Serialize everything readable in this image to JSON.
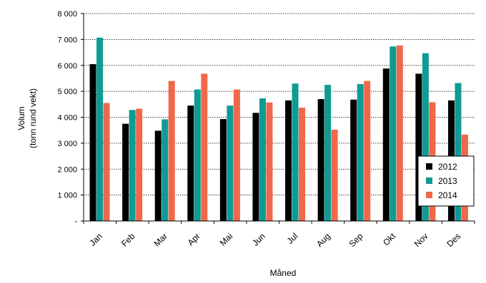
{
  "chart_data": {
    "type": "bar",
    "title": "",
    "xlabel": "Måned",
    "ylabel": [
      "Volum",
      "(tonn rund vekt)"
    ],
    "categories": [
      "Jan",
      "Feb",
      "Mar",
      "Apr",
      "Mai",
      "Jun",
      "Jul",
      "Aug",
      "Sep",
      "Okt",
      "Nov",
      "Des"
    ],
    "series": [
      {
        "name": "2012",
        "color": "#000000",
        "values": [
          6050,
          3750,
          3480,
          4450,
          3930,
          4170,
          4650,
          4700,
          4680,
          5880,
          5680,
          4650
        ]
      },
      {
        "name": "2013",
        "color": "#0e9b94",
        "values": [
          7070,
          4280,
          3920,
          5070,
          4450,
          4730,
          5300,
          5250,
          5280,
          6730,
          6470,
          5320
        ]
      },
      {
        "name": "2014",
        "color": "#f0684a",
        "values": [
          4550,
          4330,
          5400,
          5680,
          5070,
          4570,
          4370,
          3520,
          5400,
          6770,
          4580,
          3330
        ]
      }
    ],
    "ylim": [
      0,
      8000
    ],
    "yticks": [
      0,
      1000,
      2000,
      3000,
      4000,
      5000,
      6000,
      7000,
      8000
    ],
    "ytick_labels": [
      "-",
      "1 000",
      "2 000",
      "3 000",
      "4 000",
      "5 000",
      "6 000",
      "7 000",
      "8 000"
    ],
    "grid": "horizontal dotted",
    "legend_position": "right"
  }
}
